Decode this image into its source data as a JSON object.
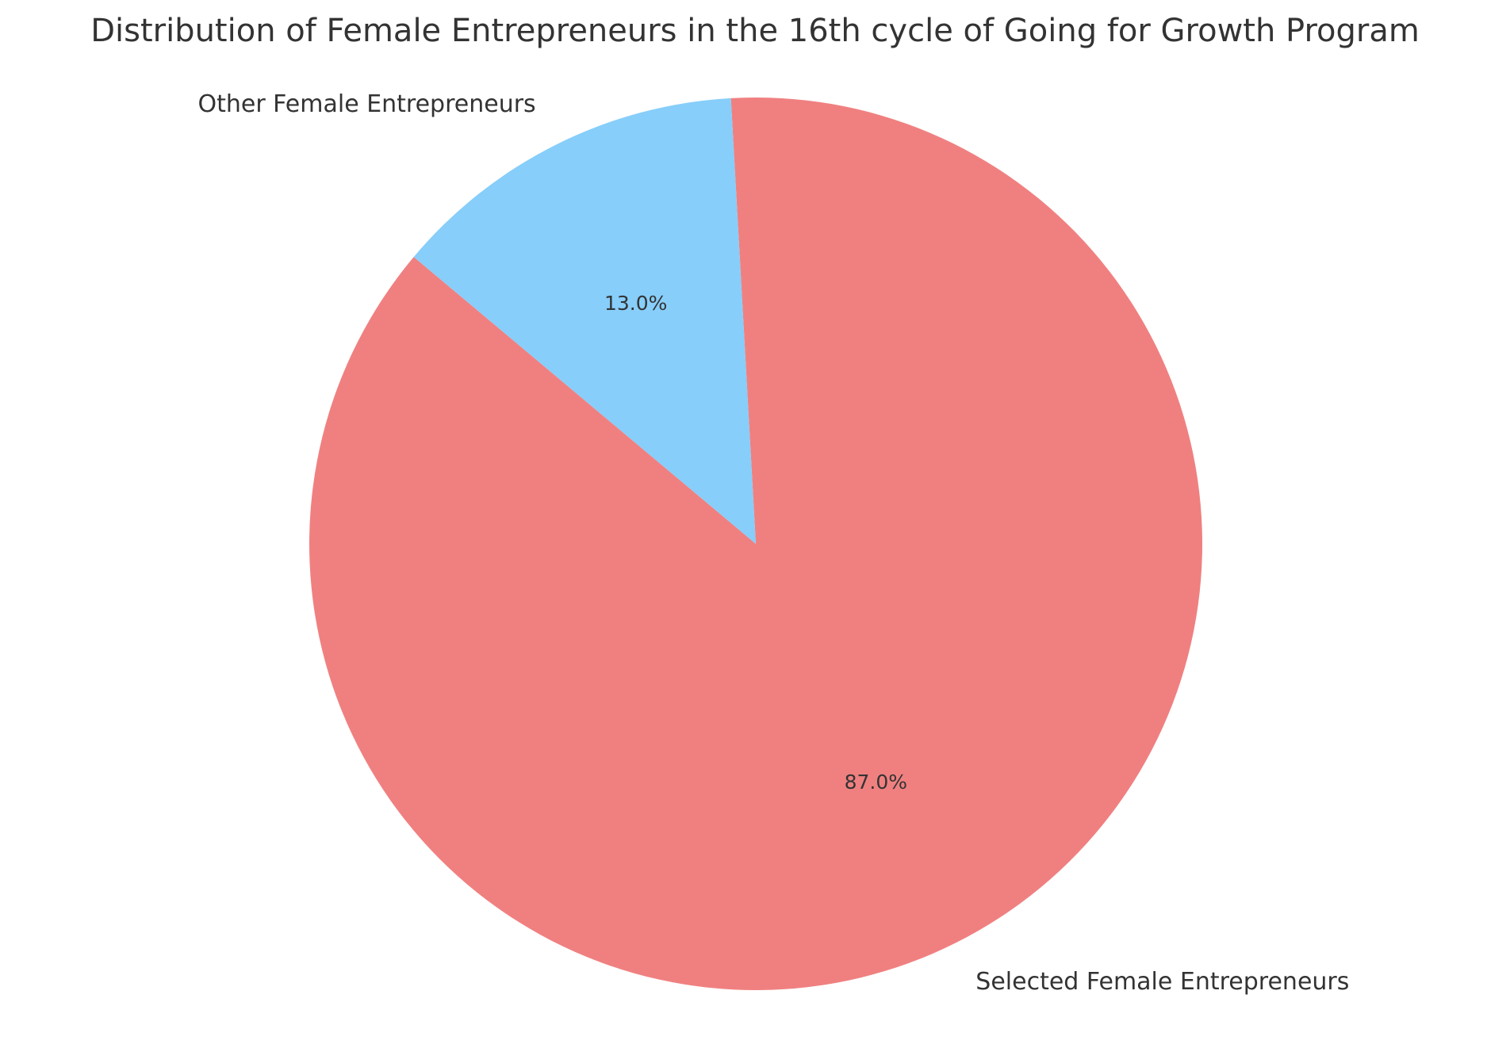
{
  "chart_data": {
    "type": "pie",
    "title": "Distribution of Female Entrepreneurs in the 16th cycle of Going for Growth Program",
    "start_angle_deg": 140,
    "direction": "counterclockwise",
    "slices": [
      {
        "label": "Selected Female Entrepreneurs",
        "value": 87.0,
        "display": "87.0%",
        "color": "#f08080"
      },
      {
        "label": "Other Female Entrepreneurs",
        "value": 13.0,
        "display": "13.0%",
        "color": "#87cefa"
      }
    ]
  }
}
